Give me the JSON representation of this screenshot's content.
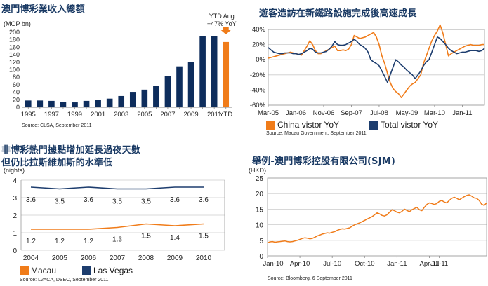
{
  "charts": {
    "revenue": {
      "title": "澳門博彩業收入總額",
      "source": "Source: CLSA, September 2011"
    },
    "visitors": {
      "title": "遊客造訪在新鐵路設施完成後高速成長",
      "source": "Source: Macau Government, September 2011"
    },
    "nights": {
      "title_line1": "非博彩熱門據點增加延長過夜天數",
      "title_line2": "但仍比拉斯維加斯的水準低",
      "source": "Source: LVACA, DSEC, September 2011"
    },
    "sjm": {
      "title": "舉例-澳門博彩控股有限公司(SJM)",
      "source": "Source: Bloomberg, 6 September 2011"
    }
  },
  "colors": {
    "orange": "#f07c1a",
    "navy": "#1d3d6e",
    "bar_navy": "#0e2d5c",
    "grid": "#cccccc"
  },
  "chart_data": [
    {
      "id": "revenue",
      "type": "bar",
      "ylabel": "(MOP bn)",
      "ylim": [
        0,
        200
      ],
      "yticks": [
        0,
        20,
        40,
        60,
        80,
        100,
        120,
        140,
        160,
        180,
        200
      ],
      "categories": [
        "1995",
        "1996",
        "1997",
        "1998",
        "1999",
        "2000",
        "2001",
        "2002",
        "2003",
        "2004",
        "2005",
        "2006",
        "2007",
        "2008",
        "2009",
        "2010",
        "2011",
        "YTD"
      ],
      "xtick_labels": [
        "1995",
        "",
        "1997",
        "",
        "1999",
        "",
        "2001",
        "",
        "2003",
        "",
        "2005",
        "",
        "2007",
        "",
        "2009",
        "",
        "2011",
        "YTD"
      ],
      "values": [
        18,
        18,
        17,
        14,
        13,
        17,
        19,
        23,
        30,
        41,
        47,
        57,
        83,
        109,
        120,
        189,
        190,
        174
      ],
      "highlight_index": 17,
      "annotation": {
        "line1": "YTD Aug",
        "line2": "+47% YoY"
      }
    },
    {
      "id": "visitors",
      "type": "line",
      "ylim": [
        -60,
        40
      ],
      "yticks": [
        -60,
        -40,
        -20,
        0,
        20,
        40
      ],
      "ytick_labels": [
        "-60%",
        "-40%",
        "-20%",
        "0%",
        "20%",
        "40%"
      ],
      "xtick_labels": [
        "Mar-05",
        "Jan-06",
        "Nov-06",
        "Sep-07",
        "Jul-08",
        "May-09",
        "Mar-10",
        "Jan-11"
      ],
      "xtick_index": [
        0,
        10,
        20,
        30,
        40,
        50,
        60,
        70
      ],
      "x_count": 79,
      "series": [
        {
          "name": "China vistor YoY",
          "color": "#f07c1a",
          "values": [
            2,
            3,
            4,
            5,
            6,
            7,
            8,
            9,
            10,
            9,
            8,
            7,
            6,
            12,
            18,
            25,
            20,
            12,
            8,
            8,
            10,
            12,
            14,
            16,
            18,
            12,
            12,
            13,
            12,
            14,
            20,
            32,
            30,
            28,
            29,
            30,
            32,
            34,
            36,
            30,
            20,
            5,
            -5,
            -18,
            -30,
            -38,
            -42,
            -45,
            -50,
            -45,
            -40,
            -35,
            -32,
            -30,
            -25,
            -20,
            -5,
            5,
            15,
            25,
            32,
            38,
            46,
            35,
            20,
            5,
            8,
            10,
            12,
            14,
            16,
            18,
            19,
            20,
            19,
            19,
            19,
            20,
            20
          ]
        },
        {
          "name": "Total vistor YoY",
          "color": "#1d3d6e",
          "values": [
            16,
            13,
            10,
            9,
            8,
            8,
            9,
            9,
            9,
            8,
            8,
            7,
            8,
            10,
            12,
            15,
            14,
            10,
            9,
            9,
            10,
            11,
            14,
            18,
            24,
            20,
            19,
            19,
            20,
            22,
            24,
            27,
            24,
            20,
            18,
            15,
            10,
            0,
            -3,
            -5,
            -8,
            -15,
            -22,
            -30,
            -20,
            -10,
            0,
            -3,
            -7,
            -10,
            -14,
            -17,
            -20,
            -25,
            -20,
            -15,
            -8,
            -3,
            0,
            10,
            20,
            30,
            28,
            24,
            20,
            15,
            12,
            10,
            8,
            9,
            10,
            10,
            11,
            12,
            12,
            12,
            11,
            12,
            15
          ]
        }
      ]
    },
    {
      "id": "nights",
      "type": "line",
      "ylabel": "(nights)",
      "ylim": [
        0,
        4
      ],
      "yticks": [
        0,
        1,
        2,
        3,
        4
      ],
      "categories": [
        "2004",
        "2005",
        "2006",
        "2007",
        "2008",
        "2009",
        "2010"
      ],
      "series": [
        {
          "name": "Macau",
          "color": "#f07c1a",
          "values": [
            1.2,
            1.2,
            1.2,
            1.3,
            1.5,
            1.4,
            1.5
          ],
          "labels": [
            "1.2",
            "1.2",
            "1.2",
            "1.3",
            "1.5",
            "1.4",
            "1.5"
          ]
        },
        {
          "name": "Las Vegas",
          "color": "#1d3d6e",
          "values": [
            3.6,
            3.5,
            3.6,
            3.5,
            3.5,
            3.6,
            3.6
          ],
          "labels": [
            "3.6",
            "3.5",
            "3.6",
            "3.5",
            "3.5",
            "3.6",
            "3.6"
          ]
        }
      ]
    },
    {
      "id": "sjm",
      "type": "line",
      "ylabel": "(HKD)",
      "ylim": [
        0,
        25
      ],
      "yticks": [
        0,
        5,
        10,
        15,
        20,
        25
      ],
      "xtick_labels": [
        "Jan-10",
        "Apr-10",
        "Jul-10",
        "Oct-10",
        "Jan-11",
        "Apr-11",
        "Jul-11"
      ],
      "xtick_index": [
        0,
        13,
        26,
        39,
        52,
        65,
        69
      ],
      "x_count": 89,
      "series": [
        {
          "name": "SJM",
          "color": "#f07c1a",
          "values": [
            4.2,
            4.5,
            4.6,
            4.4,
            4.5,
            4.6,
            4.7,
            4.8,
            4.6,
            4.5,
            4.6,
            4.8,
            5.0,
            5.3,
            5.6,
            5.8,
            5.7,
            5.5,
            5.6,
            6.0,
            6.4,
            6.7,
            7.0,
            7.2,
            7.4,
            7.3,
            7.6,
            7.8,
            8.2,
            8.5,
            8.7,
            8.6,
            8.8,
            9.0,
            9.5,
            10.0,
            10.3,
            10.6,
            11.0,
            11.4,
            11.8,
            12.2,
            12.6,
            13.2,
            13.8,
            13.5,
            13.0,
            12.8,
            13.2,
            14.0,
            14.8,
            14.5,
            14.0,
            13.8,
            14.3,
            15.0,
            14.6,
            14.2,
            14.8,
            15.2,
            15.6,
            14.8,
            14.5,
            15.6,
            16.5,
            17.0,
            16.8,
            16.5,
            16.8,
            17.5,
            17.8,
            17.3,
            17.0,
            17.8,
            18.5,
            18.8,
            18.5,
            18.0,
            18.5,
            19.0,
            19.4,
            19.6,
            19.2,
            18.6,
            18.5,
            17.8,
            16.6,
            16.2,
            17.0
          ]
        }
      ]
    }
  ]
}
